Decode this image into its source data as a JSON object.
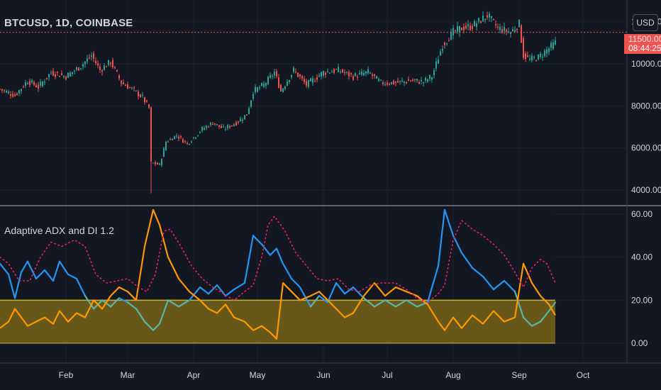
{
  "symbol_legend": "BTCUSD, 1D, COINBASE",
  "indicator_legend": "Adaptive ADX and DI 1.2",
  "currency": "USD",
  "last_price": "11500.00",
  "countdown": "08:44:25",
  "colors": {
    "background": "#131722",
    "up": "#26a69a",
    "down": "#ef5350",
    "di_plus": "#2196f3",
    "di_plus_low": "#5bb5a6",
    "di_minus": "#ff9800",
    "adx": "#e91e63",
    "zone_fill": "#6b5c1a",
    "zone_line": "#c9b13a",
    "price_line": "#ef5350"
  },
  "chart_data": [
    {
      "type": "candlestick",
      "title": "BTCUSD, 1D, COINBASE",
      "ylim": [
        3500,
        12700
      ],
      "y_ticks": [
        "4000.00",
        "6000.00",
        "8000.00",
        "10000.00",
        "12000.00"
      ],
      "last_price_line": 11500,
      "close_path": [
        [
          "2020-01-01",
          8800
        ],
        [
          "2020-01-08",
          8500
        ],
        [
          "2020-01-14",
          9200
        ],
        [
          "2020-01-19",
          8900
        ],
        [
          "2020-01-25",
          9600
        ],
        [
          "2020-02-01",
          9400
        ],
        [
          "2020-02-08",
          9900
        ],
        [
          "2020-02-13",
          10400
        ],
        [
          "2020-02-17",
          9700
        ],
        [
          "2020-02-22",
          10100
        ],
        [
          "2020-02-27",
          9100
        ],
        [
          "2020-03-03",
          8800
        ],
        [
          "2020-03-08",
          8400
        ],
        [
          "2020-03-11",
          7900
        ],
        [
          "2020-03-12",
          5300
        ],
        [
          "2020-03-16",
          5200
        ],
        [
          "2020-03-19",
          6300
        ],
        [
          "2020-03-24",
          6600
        ],
        [
          "2020-03-29",
          6200
        ],
        [
          "2020-04-05",
          6900
        ],
        [
          "2020-04-10",
          7200
        ],
        [
          "2020-04-15",
          6900
        ],
        [
          "2020-04-21",
          7200
        ],
        [
          "2020-04-26",
          7600
        ],
        [
          "2020-04-29",
          8700
        ],
        [
          "2020-05-04",
          9000
        ],
        [
          "2020-05-09",
          9600
        ],
        [
          "2020-05-12",
          8700
        ],
        [
          "2020-05-18",
          9700
        ],
        [
          "2020-05-24",
          9000
        ],
        [
          "2020-06-01",
          9600
        ],
        [
          "2020-06-08",
          9700
        ],
        [
          "2020-06-15",
          9400
        ],
        [
          "2020-06-22",
          9600
        ],
        [
          "2020-06-28",
          9100
        ],
        [
          "2020-07-05",
          9100
        ],
        [
          "2020-07-12",
          9200
        ],
        [
          "2020-07-18",
          9150
        ],
        [
          "2020-07-22",
          9400
        ],
        [
          "2020-07-27",
          10900
        ],
        [
          "2020-08-01",
          11500
        ],
        [
          "2020-08-05",
          11700
        ],
        [
          "2020-08-10",
          11800
        ],
        [
          "2020-08-17",
          12300
        ],
        [
          "2020-08-22",
          11700
        ],
        [
          "2020-08-28",
          11500
        ],
        [
          "2020-09-01",
          11900
        ],
        [
          "2020-09-03",
          10400
        ],
        [
          "2020-09-06",
          10200
        ],
        [
          "2020-09-10",
          10300
        ],
        [
          "2020-09-18",
          11000
        ]
      ]
    },
    {
      "type": "line",
      "title": "Adaptive ADX and DI 1.2",
      "ylim": [
        -3,
        63
      ],
      "y_ticks": [
        "0.00",
        "20.00",
        "40.00",
        "60.00"
      ],
      "threshold_band": [
        0,
        20
      ],
      "x_tick_labels": [
        "Feb",
        "Mar",
        "Apr",
        "May",
        "Jun",
        "Jul",
        "Aug",
        "Sep",
        "Oct"
      ],
      "series": [
        {
          "color": "#2196f3",
          "low_color": "#5bb5a6",
          "values": [
            [
              "2020-01-01",
              37
            ],
            [
              "2020-01-05",
              32
            ],
            [
              "2020-01-08",
              21
            ],
            [
              "2020-01-11",
              33
            ],
            [
              "2020-01-14",
              38
            ],
            [
              "2020-01-18",
              30
            ],
            [
              "2020-01-22",
              34
            ],
            [
              "2020-01-26",
              29
            ],
            [
              "2020-01-29",
              38
            ],
            [
              "2020-02-02",
              32
            ],
            [
              "2020-02-06",
              30
            ],
            [
              "2020-02-10",
              22
            ],
            [
              "2020-02-14",
              16
            ],
            [
              "2020-02-18",
              20
            ],
            [
              "2020-02-22",
              17
            ],
            [
              "2020-02-26",
              21
            ],
            [
              "2020-03-01",
              19
            ],
            [
              "2020-03-05",
              16
            ],
            [
              "2020-03-09",
              10
            ],
            [
              "2020-03-13",
              6
            ],
            [
              "2020-03-16",
              9
            ],
            [
              "2020-03-20",
              20
            ],
            [
              "2020-03-25",
              17
            ],
            [
              "2020-03-30",
              20
            ],
            [
              "2020-04-04",
              26
            ],
            [
              "2020-04-08",
              23
            ],
            [
              "2020-04-12",
              27
            ],
            [
              "2020-04-16",
              22
            ],
            [
              "2020-04-20",
              25
            ],
            [
              "2020-04-25",
              28
            ],
            [
              "2020-04-29",
              50
            ],
            [
              "2020-05-03",
              46
            ],
            [
              "2020-05-07",
              41
            ],
            [
              "2020-05-10",
              44
            ],
            [
              "2020-05-13",
              37
            ],
            [
              "2020-05-17",
              30
            ],
            [
              "2020-05-21",
              26
            ],
            [
              "2020-05-26",
              17
            ],
            [
              "2020-05-30",
              22
            ],
            [
              "2020-06-03",
              19
            ],
            [
              "2020-06-07",
              28
            ],
            [
              "2020-06-11",
              23
            ],
            [
              "2020-06-15",
              26
            ],
            [
              "2020-06-20",
              21
            ],
            [
              "2020-06-25",
              17
            ],
            [
              "2020-06-30",
              20
            ],
            [
              "2020-07-05",
              17
            ],
            [
              "2020-07-10",
              20
            ],
            [
              "2020-07-15",
              17
            ],
            [
              "2020-07-20",
              19
            ],
            [
              "2020-07-25",
              36
            ],
            [
              "2020-07-28",
              62
            ],
            [
              "2020-08-01",
              50
            ],
            [
              "2020-08-05",
              42
            ],
            [
              "2020-08-10",
              35
            ],
            [
              "2020-08-15",
              31
            ],
            [
              "2020-08-20",
              25
            ],
            [
              "2020-08-25",
              29
            ],
            [
              "2020-08-30",
              24
            ],
            [
              "2020-09-03",
              12
            ],
            [
              "2020-09-07",
              8
            ],
            [
              "2020-09-11",
              10
            ],
            [
              "2020-09-15",
              15
            ],
            [
              "2020-09-18",
              19
            ]
          ]
        },
        {
          "color": "#ff9800",
          "values": [
            [
              "2020-01-01",
              7
            ],
            [
              "2020-01-05",
              10
            ],
            [
              "2020-01-08",
              16
            ],
            [
              "2020-01-11",
              12
            ],
            [
              "2020-01-14",
              8
            ],
            [
              "2020-01-18",
              10
            ],
            [
              "2020-01-22",
              12
            ],
            [
              "2020-01-26",
              9
            ],
            [
              "2020-01-29",
              15
            ],
            [
              "2020-02-02",
              10
            ],
            [
              "2020-02-06",
              14
            ],
            [
              "2020-02-10",
              12
            ],
            [
              "2020-02-14",
              20
            ],
            [
              "2020-02-18",
              16
            ],
            [
              "2020-02-22",
              22
            ],
            [
              "2020-02-26",
              26
            ],
            [
              "2020-03-01",
              24
            ],
            [
              "2020-03-05",
              20
            ],
            [
              "2020-03-09",
              45
            ],
            [
              "2020-03-13",
              62
            ],
            [
              "2020-03-16",
              55
            ],
            [
              "2020-03-20",
              40
            ],
            [
              "2020-03-25",
              30
            ],
            [
              "2020-03-30",
              24
            ],
            [
              "2020-04-04",
              20
            ],
            [
              "2020-04-08",
              16
            ],
            [
              "2020-04-12",
              14
            ],
            [
              "2020-04-16",
              18
            ],
            [
              "2020-04-20",
              12
            ],
            [
              "2020-04-25",
              10
            ],
            [
              "2020-04-29",
              6
            ],
            [
              "2020-05-03",
              8
            ],
            [
              "2020-05-07",
              5
            ],
            [
              "2020-05-10",
              2
            ],
            [
              "2020-05-13",
              28
            ],
            [
              "2020-05-17",
              24
            ],
            [
              "2020-05-21",
              20
            ],
            [
              "2020-05-26",
              22
            ],
            [
              "2020-05-30",
              24
            ],
            [
              "2020-06-03",
              20
            ],
            [
              "2020-06-07",
              16
            ],
            [
              "2020-06-11",
              12
            ],
            [
              "2020-06-15",
              14
            ],
            [
              "2020-06-20",
              22
            ],
            [
              "2020-06-25",
              28
            ],
            [
              "2020-06-30",
              22
            ],
            [
              "2020-07-05",
              26
            ],
            [
              "2020-07-10",
              24
            ],
            [
              "2020-07-15",
              22
            ],
            [
              "2020-07-20",
              18
            ],
            [
              "2020-07-25",
              10
            ],
            [
              "2020-07-28",
              6
            ],
            [
              "2020-08-01",
              12
            ],
            [
              "2020-08-05",
              7
            ],
            [
              "2020-08-10",
              13
            ],
            [
              "2020-08-15",
              9
            ],
            [
              "2020-08-20",
              15
            ],
            [
              "2020-08-25",
              10
            ],
            [
              "2020-08-30",
              12
            ],
            [
              "2020-09-03",
              37
            ],
            [
              "2020-09-07",
              28
            ],
            [
              "2020-09-11",
              22
            ],
            [
              "2020-09-15",
              18
            ],
            [
              "2020-09-18",
              13
            ]
          ]
        },
        {
          "color": "#e91e63",
          "values": [
            [
              "2020-01-01",
              40
            ],
            [
              "2020-01-05",
              37
            ],
            [
              "2020-01-10",
              29
            ],
            [
              "2020-01-15",
              29
            ],
            [
              "2020-01-20",
              40
            ],
            [
              "2020-01-25",
              47
            ],
            [
              "2020-01-30",
              45
            ],
            [
              "2020-02-05",
              48
            ],
            [
              "2020-02-10",
              45
            ],
            [
              "2020-02-15",
              32
            ],
            [
              "2020-02-20",
              28
            ],
            [
              "2020-02-25",
              29
            ],
            [
              "2020-03-01",
              30
            ],
            [
              "2020-03-06",
              26
            ],
            [
              "2020-03-10",
              24
            ],
            [
              "2020-03-14",
              32
            ],
            [
              "2020-03-18",
              52
            ],
            [
              "2020-03-21",
              53
            ],
            [
              "2020-03-26",
              45
            ],
            [
              "2020-03-31",
              36
            ],
            [
              "2020-04-05",
              30
            ],
            [
              "2020-04-10",
              26
            ],
            [
              "2020-04-15",
              23
            ],
            [
              "2020-04-20",
              20
            ],
            [
              "2020-04-25",
              24
            ],
            [
              "2020-04-29",
              27
            ],
            [
              "2020-05-03",
              40
            ],
            [
              "2020-05-06",
              55
            ],
            [
              "2020-05-09",
              59
            ],
            [
              "2020-05-14",
              52
            ],
            [
              "2020-05-19",
              42
            ],
            [
              "2020-05-24",
              36
            ],
            [
              "2020-05-29",
              30
            ],
            [
              "2020-06-03",
              29
            ],
            [
              "2020-06-08",
              30
            ],
            [
              "2020-06-13",
              25
            ],
            [
              "2020-06-18",
              24
            ],
            [
              "2020-06-23",
              27
            ],
            [
              "2020-06-28",
              28
            ],
            [
              "2020-07-05",
              28
            ],
            [
              "2020-07-10",
              25
            ],
            [
              "2020-07-15",
              21
            ],
            [
              "2020-07-20",
              19
            ],
            [
              "2020-07-25",
              23
            ],
            [
              "2020-07-28",
              27
            ],
            [
              "2020-08-01",
              48
            ],
            [
              "2020-08-05",
              57
            ],
            [
              "2020-08-10",
              53
            ],
            [
              "2020-08-15",
              50
            ],
            [
              "2020-08-20",
              46
            ],
            [
              "2020-08-25",
              41
            ],
            [
              "2020-08-30",
              33
            ],
            [
              "2020-09-03",
              26
            ],
            [
              "2020-09-07",
              35
            ],
            [
              "2020-09-11",
              39
            ],
            [
              "2020-09-14",
              37
            ],
            [
              "2020-09-18",
              28
            ]
          ]
        }
      ]
    }
  ]
}
